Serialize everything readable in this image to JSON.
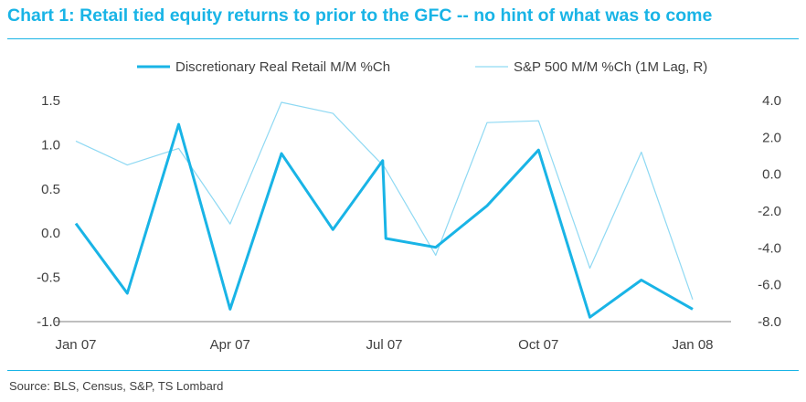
{
  "title": "Chart 1: Retail tied equity returns to prior to the GFC -- no hint of what was to come",
  "source": "Source: BLS, Census, S&P, TS Lombard",
  "colors": {
    "accent": "#19B4E6",
    "retail": "#19B4E6",
    "sp500": "#8FD9F3",
    "axis": "#7F7F7F",
    "text": "#404040"
  },
  "chart_data": {
    "type": "line",
    "x_tick_labels": [
      "Jan 07",
      "Apr 07",
      "Jul 07",
      "Oct 07",
      "Jan 08"
    ],
    "x_tick_index": [
      0,
      3,
      6,
      9,
      12
    ],
    "xlim": [
      -0.4,
      13.2
    ],
    "y_left": {
      "ylim": [
        -1.0,
        1.5
      ],
      "ticks": [
        1.5,
        1.0,
        0.5,
        0.0,
        -0.5,
        -1.0
      ],
      "tick_labels": [
        "1.5",
        "1.0",
        "0.5",
        "0.0",
        "-0.5",
        "-1.0"
      ]
    },
    "y_right": {
      "ylim": [
        -8.0,
        4.0
      ],
      "ticks": [
        4.0,
        2.0,
        0.0,
        -2.0,
        -4.0,
        -6.0,
        -8.0
      ],
      "tick_labels": [
        "4.0",
        "2.0",
        "0.0",
        "-2.0",
        "-4.0",
        "-6.0",
        "-8.0"
      ]
    },
    "legend_position": "top",
    "grid": false,
    "series": [
      {
        "name": "Discretionary Real Retail M/M %Ch",
        "axis": "left",
        "style": "thick",
        "x": [
          0,
          1,
          2,
          3,
          4,
          5,
          5.97,
          6.03,
          7,
          8,
          9,
          10,
          11,
          12
        ],
        "y": [
          0.11,
          -0.68,
          1.23,
          -0.86,
          0.9,
          0.04,
          0.82,
          -0.06,
          -0.16,
          0.31,
          0.94,
          -0.95,
          -0.53,
          -0.86
        ]
      },
      {
        "name": "S&P 500 M/M %Ch (1M Lag, R)",
        "axis": "right",
        "style": "thin",
        "x": [
          0,
          1,
          2,
          3,
          4,
          5,
          6,
          7,
          8,
          9,
          10,
          11,
          12
        ],
        "y": [
          1.8,
          0.5,
          1.4,
          -2.7,
          3.9,
          3.3,
          0.4,
          -4.4,
          2.8,
          2.9,
          -5.1,
          1.2,
          -6.8
        ]
      }
    ]
  }
}
